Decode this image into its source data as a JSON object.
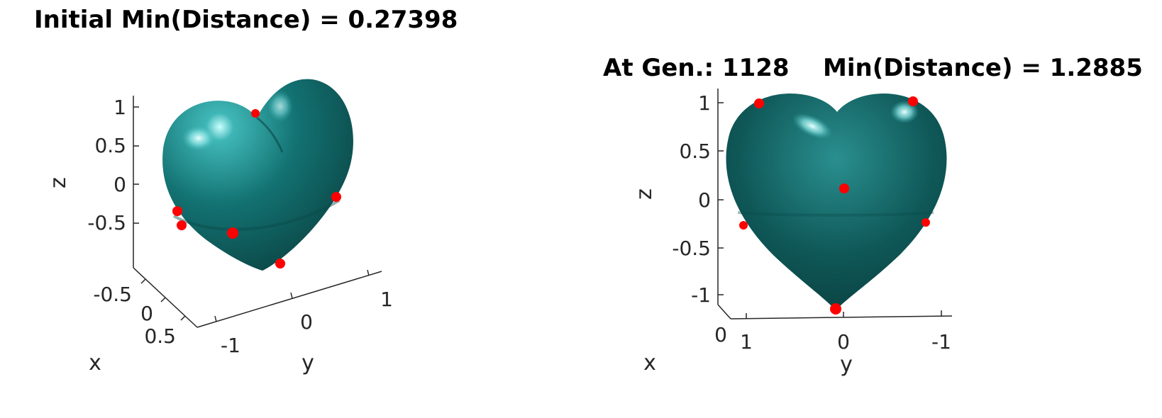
{
  "chart_data": [
    {
      "type": "3d-surface",
      "title": "Initial Min(Distance) = 0.27398",
      "xlabel": "x",
      "ylabel": "y",
      "zlabel": "z",
      "zticks": [
        "1",
        "0.5",
        "0",
        "-0.5"
      ],
      "xticks": [
        "-0.5",
        "0",
        "0.5"
      ],
      "yticks": [
        "-1",
        "0",
        "1"
      ],
      "surface_color": "#0e6b6b",
      "marker_color": "#ff0000",
      "marker_count": 8
    },
    {
      "type": "3d-surface",
      "title_gen": "At Gen.: 1128",
      "title_min": "Min(Distance) = 1.2885",
      "xlabel": "x",
      "ylabel": "y",
      "zlabel": "z",
      "zticks": [
        "1",
        "0.5",
        "0",
        "-0.5",
        "-1"
      ],
      "xticks": [
        "0"
      ],
      "yticks": [
        "1",
        "0",
        "-1"
      ],
      "surface_color": "#0e6b6b",
      "marker_color": "#ff0000",
      "marker_count": 7
    }
  ]
}
